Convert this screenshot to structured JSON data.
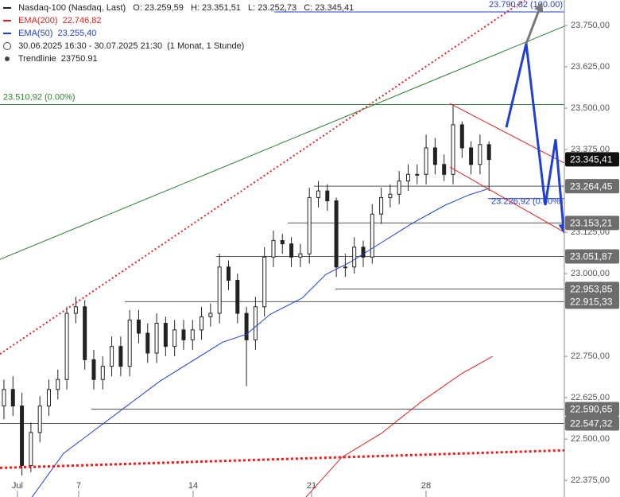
{
  "legend": {
    "instrument": "Nasdaq-100 (Nasdaq, Last)",
    "ohlc": [
      "O: 23.259,59",
      "H: 23.351,51",
      "L: 23.252,73",
      "C: 23.345,41"
    ],
    "ema200": "EMA(200)",
    "ema200_value": "22.746,82",
    "ema50": "EMA(50)",
    "ema50_value": "23.255,40",
    "period": "30.06.2025 16:30 - 30.07.2025 21:30",
    "interval": "(1 Monat, 1 Stunde)",
    "trendline": "Trendlinie",
    "trendline_value": "23750.91"
  },
  "chart_data": {
    "type": "candlestick",
    "open": [
      22600,
      22650,
      22600,
      22420,
      22520,
      22600,
      22650,
      22680,
      22880,
      22900,
      22740,
      22680,
      22720,
      22780,
      22720,
      22860,
      22820,
      22760,
      22850,
      22780,
      22830,
      22800,
      22830,
      22870,
      22880,
      23020,
      22980,
      22880,
      22800,
      22900,
      23050,
      23100,
      23090,
      23050,
      23060,
      23230,
      23250,
      23220,
      23020,
      23020,
      23080,
      23050,
      23180,
      23230,
      23240,
      23280,
      23300,
      23300,
      23380,
      23330,
      23300,
      23450,
      23380,
      23330,
      23390
    ],
    "high": [
      22680,
      22690,
      22640,
      22550,
      22630,
      22680,
      22710,
      22900,
      22930,
      22920,
      22770,
      22750,
      22810,
      22810,
      22890,
      22890,
      22850,
      22880,
      22870,
      22860,
      22860,
      22860,
      22900,
      22910,
      23060,
      23040,
      23000,
      22900,
      22930,
      23080,
      23130,
      23120,
      23110,
      23090,
      23260,
      23280,
      23270,
      23230,
      23060,
      23110,
      23100,
      23210,
      23260,
      23270,
      23310,
      23330,
      23330,
      23420,
      23410,
      23360,
      23510,
      23460,
      23400,
      23420,
      23400
    ],
    "low": [
      22560,
      22570,
      22390,
      22400,
      22490,
      22570,
      22620,
      22650,
      22850,
      22710,
      22650,
      22650,
      22690,
      22690,
      22690,
      22790,
      22730,
      22730,
      22750,
      22750,
      22770,
      22770,
      22800,
      22840,
      22850,
      22950,
      22850,
      22660,
      22770,
      22870,
      23020,
      23060,
      23020,
      23020,
      23030,
      23200,
      23190,
      22990,
      22990,
      23000,
      23020,
      23030,
      23150,
      23200,
      23210,
      23250,
      23270,
      23270,
      23300,
      23280,
      23270,
      23350,
      23300,
      23300,
      23250
    ],
    "close": [
      22650,
      22600,
      22420,
      22520,
      22600,
      22650,
      22680,
      22880,
      22900,
      22740,
      22680,
      22720,
      22780,
      22720,
      22860,
      22820,
      22760,
      22850,
      22780,
      22830,
      22800,
      22830,
      22870,
      22880,
      23020,
      22980,
      22880,
      22800,
      22900,
      23050,
      23100,
      23090,
      23050,
      23060,
      23230,
      23250,
      23220,
      23020,
      23020,
      23080,
      23050,
      23180,
      23230,
      23240,
      23280,
      23300,
      23300,
      23380,
      23330,
      23300,
      23450,
      23380,
      23330,
      23390,
      23345
    ],
    "xlim": [
      -0.44,
      62.39
    ],
    "ylim": [
      22325,
      23827
    ],
    "yticks": [
      {
        "value": 23750,
        "label": "23.750,00"
      },
      {
        "value": 23625,
        "label": "23.625,00"
      },
      {
        "value": 23500,
        "label": "23.500,00"
      },
      {
        "value": 23375,
        "label": "23.375,00"
      },
      {
        "value": 23125,
        "label": "23.125,00"
      },
      {
        "value": 23000,
        "label": "23.000,00"
      },
      {
        "value": 22750,
        "label": "22.750,00"
      },
      {
        "value": 22625,
        "label": "22.625,00"
      },
      {
        "value": 22500,
        "label": "22.500,00"
      },
      {
        "value": 22375,
        "label": "22.375,00"
      }
    ],
    "xticks": [
      {
        "value": 1.5,
        "label": "Jul"
      },
      {
        "value": 8.32,
        "label": "7"
      },
      {
        "value": 21.06,
        "label": "14"
      },
      {
        "value": 34.25,
        "label": "21"
      },
      {
        "value": 46.99,
        "label": "28"
      }
    ],
    "candle_color": "#222",
    "series": [
      {
        "name": "EMA(50)",
        "color": "#1f3fd6",
        "width": 1,
        "x": [
          3.1,
          6.64,
          10.18,
          13.72,
          17.26,
          20.8,
          24.34,
          27.0,
          29.65,
          33.19,
          35.84,
          38.5,
          42.04,
          45.58,
          49.12,
          51.77,
          53.98
        ],
        "values": [
          22324,
          22457,
          22529,
          22601,
          22673,
          22733,
          22793,
          22817,
          22877,
          22926,
          22998,
          23034,
          23094,
          23154,
          23207,
          23238,
          23257
        ]
      },
      {
        "name": "EMA(200)",
        "color": "#e02020",
        "width": 1,
        "x": [
          33.6,
          37.6,
          42.0,
          46.46,
          50.9,
          54.4
        ],
        "values": [
          22324,
          22445,
          22517,
          22613,
          22697,
          22750
        ]
      },
      {
        "color": "#2e7d32",
        "width": 1,
        "x": [
          -0.44,
          62.39
        ],
        "values": [
          23043,
          23748
        ]
      },
      {
        "color": "#e02020",
        "width": 2,
        "dash": "2 3",
        "x": [
          -0.44,
          57.96
        ],
        "values": [
          22757,
          23827
        ]
      },
      {
        "color": "#e02020",
        "width": 3,
        "dash": "3 3",
        "x": [
          -0.44,
          62.39
        ],
        "values": [
          22413,
          22466
        ]
      },
      {
        "color": "#e02020",
        "width": 1,
        "x": [
          49.65,
          62.39
        ],
        "values": [
          23514,
          23334
        ]
      },
      {
        "color": "#e02020",
        "width": 1,
        "x": [
          49.65,
          62.39
        ],
        "values": [
          23322,
          23125
        ]
      },
      {
        "color": "#1f3fd6",
        "width": 3,
        "arrow": true,
        "x": [
          55.93,
          58.14,
          60.27,
          61.42,
          62.3
        ],
        "values": [
          23442,
          23695,
          23207,
          23406,
          23135
        ]
      },
      {
        "color": "#777",
        "width": 3,
        "arrow": true,
        "x": [
          58.14,
          59.73
        ],
        "values": [
          23695,
          23808
        ]
      }
    ],
    "levels": [
      {
        "value": 23264.45,
        "label": "23.264,45",
        "x0": 34.5
      },
      {
        "value": 23153.21,
        "label": "23.153,21",
        "x0": 31.6
      },
      {
        "value": 23051.87,
        "label": "23.051,87",
        "x0": 23.6
      },
      {
        "value": 22953.85,
        "label": "22.953,85",
        "x0": 36.9
      },
      {
        "value": 22915.33,
        "label": "22.915,33",
        "x0": 13.45
      },
      {
        "value": 22590.65,
        "label": "22.590,65",
        "x0": 9.73
      },
      {
        "value": 22547.32,
        "label": "22.547,32",
        "x0": -0.44
      }
    ],
    "last": {
      "value": 23345.41,
      "label": "23.345,41"
    },
    "fibs": [
      {
        "value": 23790.82,
        "label": "23.790,82 (100.00)",
        "x0": 30.1,
        "color": "#1f3fd6",
        "anchor": "right"
      },
      {
        "value": 23510.92,
        "label": "23.510,92 (0.00%)",
        "x0": -0.44,
        "color": "#2e7d32",
        "anchor": "left"
      },
      {
        "value": 23226.92,
        "label": "23.226,92 (0.00%)",
        "x0": 53.9,
        "color": "#1f3fd6",
        "anchor": "inside"
      }
    ]
  }
}
